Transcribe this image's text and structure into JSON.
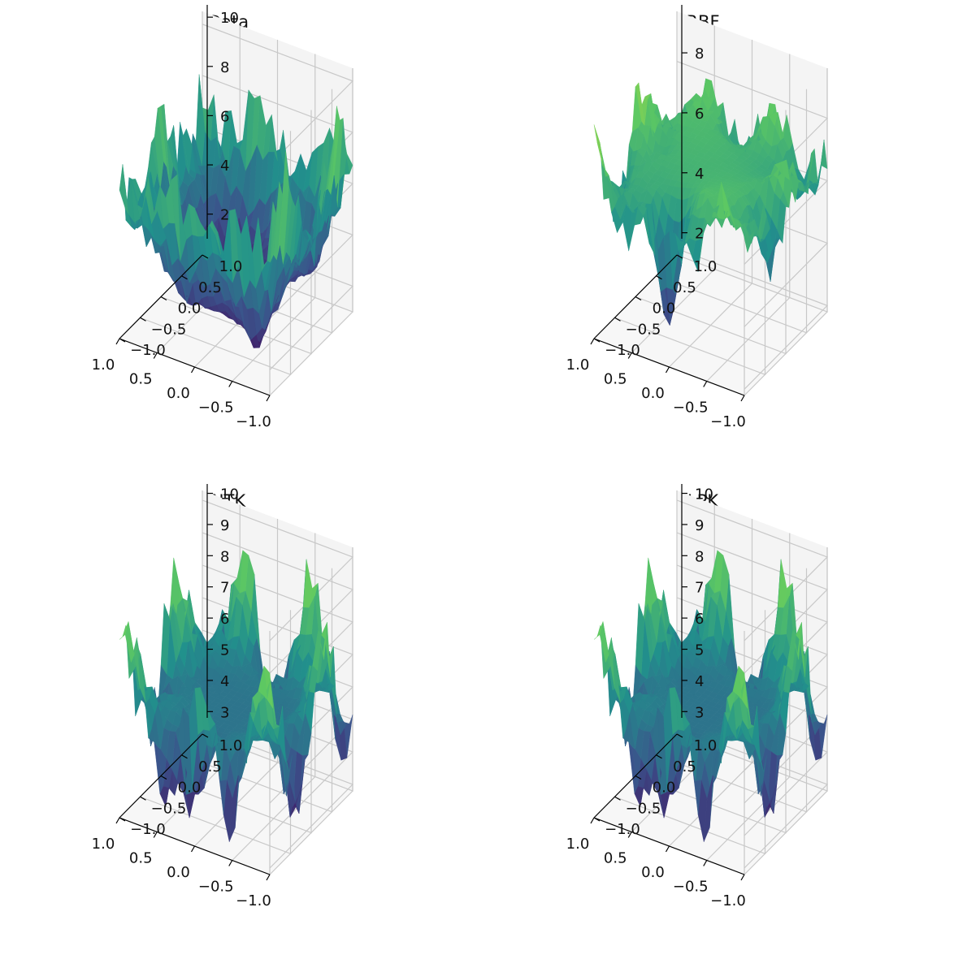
{
  "chart_data": [
    {
      "type": "surface3d",
      "title": "Data",
      "x_ticks": [
        "−1.0",
        "−0.5",
        "0.0",
        "0.5",
        "1.0"
      ],
      "y_ticks": [
        "−1.0",
        "−0.5",
        "0.0",
        "0.5",
        "1.0"
      ],
      "z_ticks": [
        "2",
        "4",
        "6",
        "8",
        "10"
      ],
      "xlim": [
        -1,
        1
      ],
      "ylim": [
        -1,
        1
      ],
      "zlim": [
        1,
        10.5
      ],
      "colormap": "viridis",
      "grid": true,
      "surface": {
        "center": 2.0,
        "edge_base": 7.0,
        "amp": 2.5,
        "seed": 3,
        "edge": 0.0
      }
    },
    {
      "type": "surface3d",
      "title": "RBF",
      "x_ticks": [
        "−1.0",
        "−0.5",
        "0.0",
        "0.5",
        "1.0"
      ],
      "y_ticks": [
        "−1.0",
        "−0.5",
        "0.0",
        "0.5",
        "1.0"
      ],
      "z_ticks": [
        "2",
        "4",
        "6",
        "8"
      ],
      "xlim": [
        -1,
        1
      ],
      "ylim": [
        -1,
        1
      ],
      "zlim": [
        1.8,
        9.6
      ],
      "colormap": "viridis",
      "grid": true,
      "surface": {
        "center": 6.5,
        "edge_base": 6.8,
        "amp": 1.5,
        "seed": 7,
        "edge": 0.18,
        "dip": 4.3
      }
    },
    {
      "type": "surface3d",
      "title": "NTK",
      "x_ticks": [
        "−1.0",
        "−0.5",
        "0.0",
        "0.5",
        "1.0"
      ],
      "y_ticks": [
        "−1.0",
        "−0.5",
        "0.0",
        "0.5",
        "1.0"
      ],
      "z_ticks": [
        "3",
        "4",
        "5",
        "6",
        "7",
        "8",
        "9",
        "10"
      ],
      "xlim": [
        -1,
        1
      ],
      "ylim": [
        -1,
        1
      ],
      "zlim": [
        2.8,
        10.3
      ],
      "colormap": "viridis",
      "grid": true,
      "surface": {
        "center": 6.3,
        "edge_base": 6.5,
        "amp": 2.3,
        "seed": 11,
        "edge": 0.2,
        "dip": 3.2
      }
    },
    {
      "type": "surface3d",
      "title": "LPK",
      "x_ticks": [
        "−1.0",
        "−0.5",
        "0.0",
        "0.5",
        "1.0"
      ],
      "y_ticks": [
        "−1.0",
        "−0.5",
        "0.0",
        "0.5",
        "1.0"
      ],
      "z_ticks": [
        "3",
        "4",
        "5",
        "6",
        "7",
        "8",
        "9",
        "10"
      ],
      "xlim": [
        -1,
        1
      ],
      "ylim": [
        -1,
        1
      ],
      "zlim": [
        2.8,
        10.3
      ],
      "colormap": "viridis",
      "grid": true,
      "surface": {
        "center": 6.3,
        "edge_base": 6.5,
        "amp": 2.3,
        "seed": 11,
        "edge": 0.2,
        "dip": 3.2
      }
    }
  ],
  "colors": {
    "pane_left": "#ececec",
    "pane_right": "#f4f4f4",
    "pane_floor": "#f7f7f7",
    "grid": "#c8c8c8",
    "viridis": [
      "#440154",
      "#3b528b",
      "#21918c",
      "#5ec962",
      "#fde725"
    ]
  }
}
